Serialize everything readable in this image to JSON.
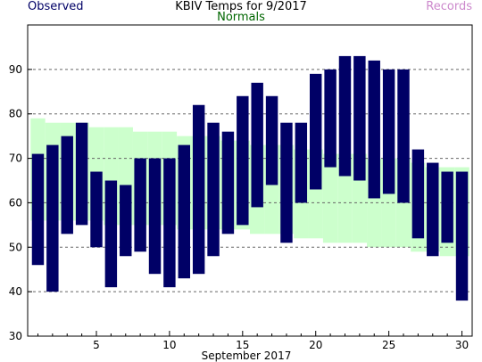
{
  "header": {
    "title": "KBIV Temps for 9/2017",
    "observed_label": "Observed",
    "normals_label": "Normals",
    "records_label": "Records"
  },
  "colors": {
    "observed": "#000066",
    "normals_band": "#ccffcc",
    "normals_text": "#006600",
    "records_text": "#cc88cc",
    "gridline": "#666666"
  },
  "chart_data": {
    "type": "bar",
    "title": "KBIV Temps for 9/2017",
    "xlabel": "September 2017",
    "ylabel": "",
    "ylim": [
      30,
      100
    ],
    "y_ticks": [
      30,
      40,
      50,
      60,
      70,
      80,
      90
    ],
    "x_ticks": [
      5,
      10,
      15,
      20,
      25,
      30
    ],
    "x_range": [
      0.3,
      30.7
    ],
    "grid": "horizontal dashed",
    "series": [
      {
        "name": "Observed",
        "kind": "floating range bars (daily high/low)",
        "days": [
          1,
          2,
          3,
          4,
          5,
          6,
          7,
          8,
          9,
          10,
          11,
          12,
          13,
          14,
          15,
          16,
          17,
          18,
          19,
          20,
          21,
          22,
          23,
          24,
          25,
          26,
          27,
          28,
          29,
          30
        ],
        "high": [
          71,
          73,
          75,
          78,
          67,
          65,
          64,
          70,
          70,
          70,
          73,
          82,
          78,
          76,
          84,
          87,
          84,
          78,
          78,
          89,
          90,
          93,
          93,
          92,
          90,
          90,
          72,
          69,
          67,
          67
        ],
        "low": [
          46,
          40,
          53,
          55,
          50,
          41,
          48,
          49,
          44,
          41,
          43,
          44,
          48,
          53,
          55,
          59,
          64,
          51,
          60,
          63,
          68,
          66,
          65,
          61,
          62,
          60,
          52,
          48,
          51,
          38
        ]
      },
      {
        "name": "Normals",
        "kind": "shaded band (normal high/low)",
        "days": [
          1,
          2,
          3,
          4,
          5,
          6,
          7,
          8,
          9,
          10,
          11,
          12,
          13,
          14,
          15,
          16,
          17,
          18,
          19,
          20,
          21,
          22,
          23,
          24,
          25,
          26,
          27,
          28,
          29,
          30
        ],
        "high": [
          79,
          78,
          78,
          78,
          77,
          77,
          77,
          76,
          76,
          76,
          75,
          75,
          75,
          74,
          74,
          73,
          73,
          73,
          72,
          72,
          71,
          71,
          71,
          70,
          70,
          70,
          69,
          68,
          68,
          68
        ],
        "low": [
          56,
          56,
          56,
          56,
          56,
          55,
          55,
          55,
          55,
          55,
          54,
          54,
          54,
          54,
          54,
          53,
          53,
          53,
          52,
          52,
          51,
          51,
          51,
          50,
          50,
          50,
          49,
          49,
          48,
          48
        ]
      }
    ]
  }
}
